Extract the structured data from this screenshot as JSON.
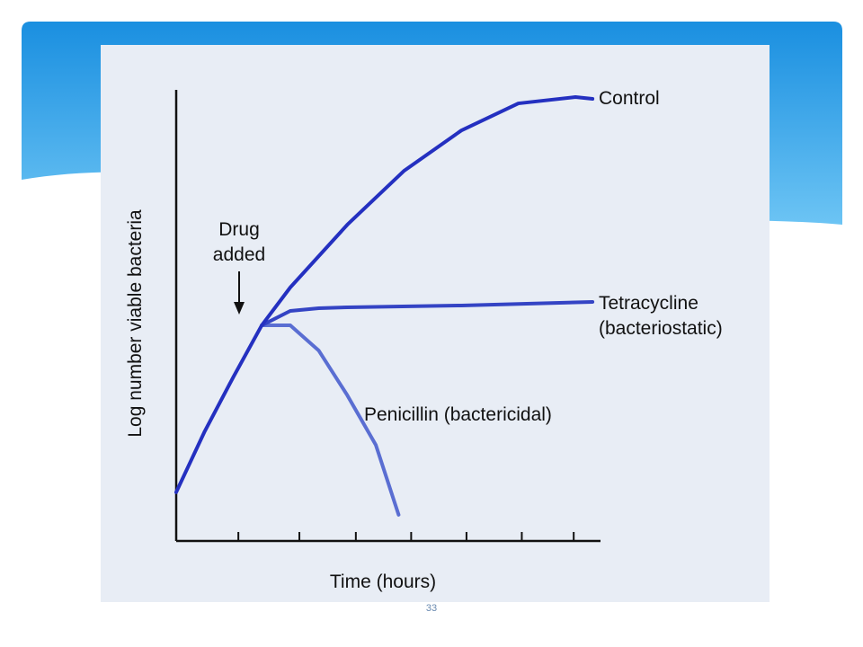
{
  "chart_data": {
    "type": "line",
    "y_label": "Log number viable bacteria",
    "x_label": "Time (hours)",
    "annotation": "Drug added",
    "xlim": [
      0,
      7.44
    ],
    "ylim": [
      0,
      10
    ],
    "xticks": [
      1.09,
      2.16,
      3.15,
      4.12,
      5.09,
      6.06,
      6.97
    ],
    "series": [
      {
        "name": "Control",
        "color": "#2430c0",
        "x": [
          0,
          0.5,
          1,
          1.5,
          2,
          3,
          4,
          5,
          6,
          7,
          7.3
        ],
        "values": [
          1.08,
          2.43,
          3.63,
          4.78,
          5.62,
          7.01,
          8.21,
          9.1,
          9.7,
          9.84,
          9.8
        ]
      },
      {
        "name": "Tetracycline (bacteriostatic)",
        "color": "#3444c4",
        "x": [
          1.5,
          2,
          2.5,
          3,
          5,
          7.3
        ],
        "values": [
          4.78,
          5.1,
          5.16,
          5.18,
          5.22,
          5.3
        ]
      },
      {
        "name": "Penicillin (bactericidal)",
        "color": "#5a6ed2",
        "x": [
          1.5,
          2,
          2.5,
          3,
          3.5,
          3.9
        ],
        "values": [
          4.78,
          4.78,
          4.22,
          3.23,
          2.13,
          0.58
        ]
      }
    ],
    "page_number": "33"
  }
}
